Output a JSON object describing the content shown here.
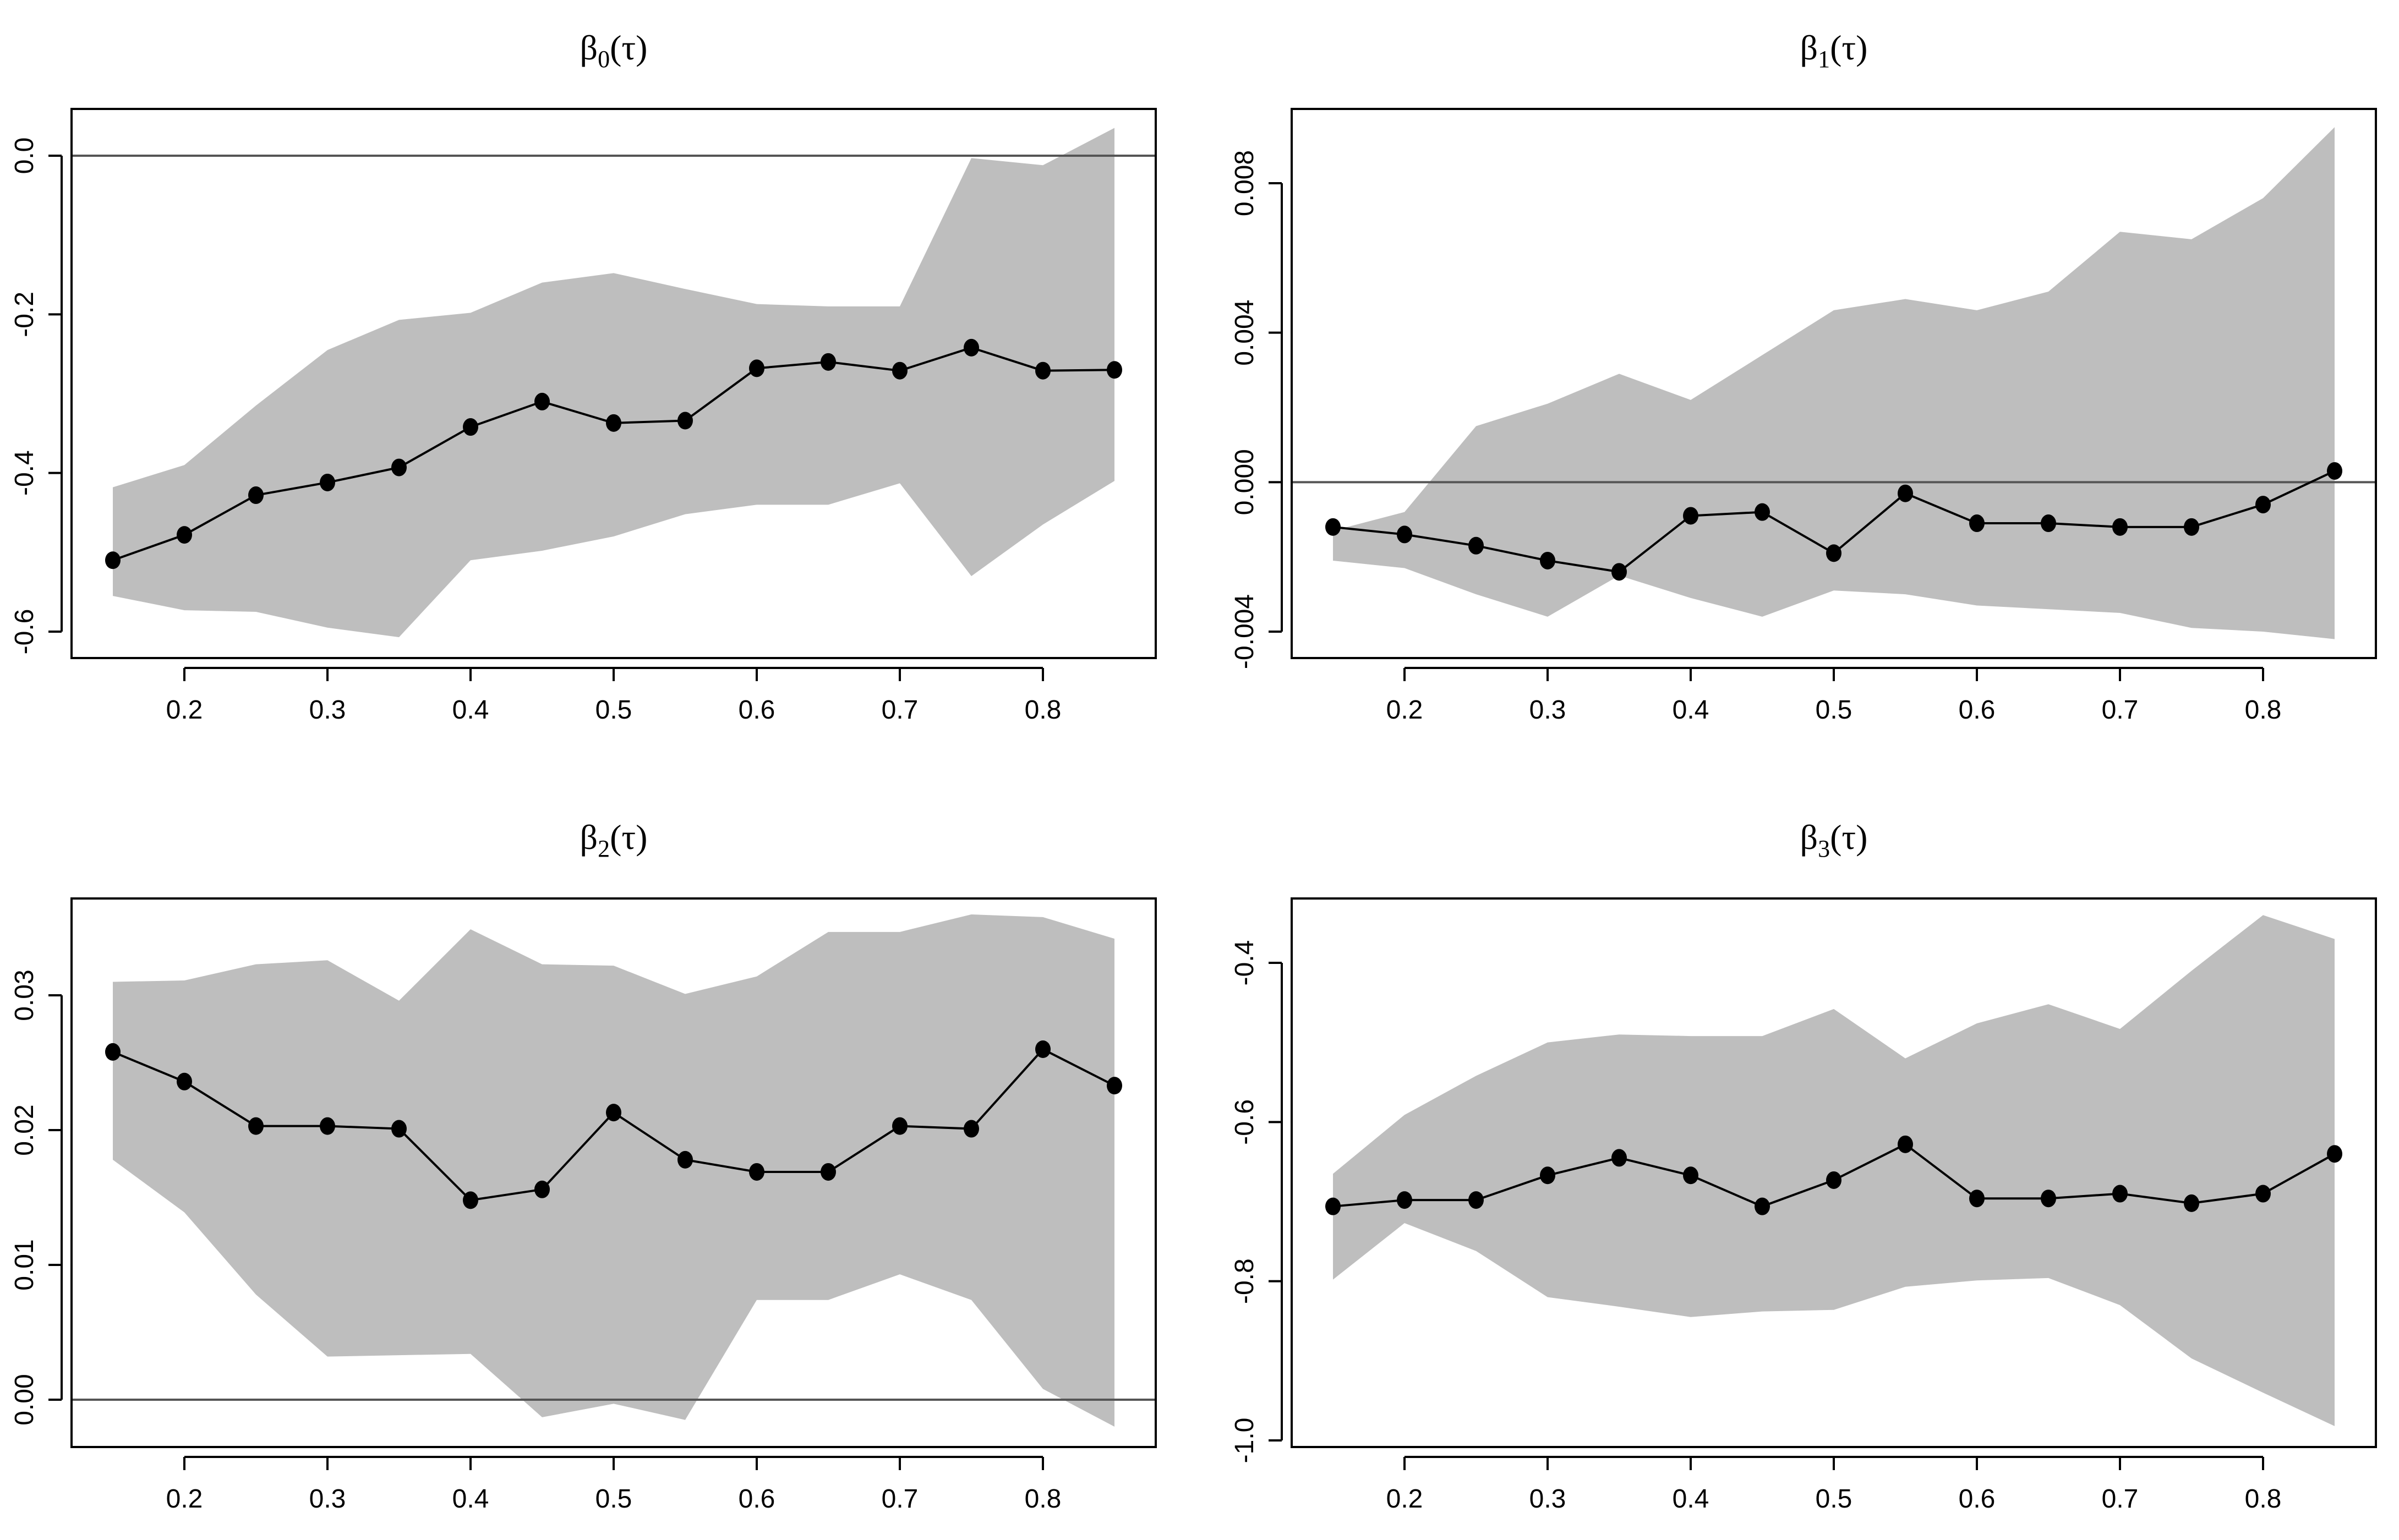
{
  "chart_data": [
    {
      "type": "line",
      "title_base": "β",
      "title_sub": "0",
      "title_arg": "(τ)",
      "x": [
        0.15,
        0.2,
        0.25,
        0.3,
        0.35,
        0.4,
        0.45,
        0.5,
        0.55,
        0.6,
        0.65,
        0.7,
        0.75,
        0.8,
        0.85
      ],
      "series": [
        {
          "name": "estimate",
          "values": [
            -0.51,
            -0.478,
            -0.428,
            -0.412,
            -0.393,
            -0.342,
            -0.31,
            -0.337,
            -0.334,
            -0.268,
            -0.26,
            -0.271,
            -0.242,
            -0.271,
            -0.27
          ]
        },
        {
          "name": "upper",
          "values": [
            -0.418,
            -0.39,
            -0.315,
            -0.245,
            -0.207,
            -0.198,
            -0.16,
            -0.148,
            -0.168,
            -0.187,
            -0.19,
            -0.19,
            -0.003,
            -0.012,
            0.035
          ]
        },
        {
          "name": "lower",
          "values": [
            -0.555,
            -0.573,
            -0.575,
            -0.595,
            -0.607,
            -0.51,
            -0.498,
            -0.48,
            -0.452,
            -0.44,
            -0.44,
            -0.413,
            -0.53,
            -0.465,
            -0.41
          ]
        }
      ],
      "reference_line": 0,
      "xlim": [
        0.15,
        0.85
      ],
      "ylim": [
        -0.6,
        0.0
      ],
      "xticks": [
        "0.2",
        "0.3",
        "0.4",
        "0.5",
        "0.6",
        "0.7",
        "0.8"
      ],
      "yticks": [
        "-0.6",
        "-0.4",
        "-0.2",
        "0.0"
      ]
    },
    {
      "type": "line",
      "title_base": "β",
      "title_sub": "1",
      "title_arg": "(τ)",
      "x": [
        0.15,
        0.2,
        0.25,
        0.3,
        0.35,
        0.4,
        0.45,
        0.5,
        0.55,
        0.6,
        0.65,
        0.7,
        0.75,
        0.8,
        0.85
      ],
      "series": [
        {
          "name": "estimate",
          "values": [
            -0.0012,
            -0.0014,
            -0.0017,
            -0.0021,
            -0.0024,
            -0.0009,
            -0.0008,
            -0.0019,
            -0.0003,
            -0.0011,
            -0.0011,
            -0.0012,
            -0.0012,
            -0.0006,
            0.0003
          ]
        },
        {
          "name": "upper",
          "values": [
            -0.0013,
            -0.0008,
            0.0015,
            0.0021,
            0.0029,
            0.0022,
            0.0034,
            0.0046,
            0.0049,
            0.0046,
            0.0051,
            0.0067,
            0.0065,
            0.0076,
            0.0095
          ]
        },
        {
          "name": "lower",
          "values": [
            -0.0021,
            -0.0023,
            -0.003,
            -0.0036,
            -0.0025,
            -0.0031,
            -0.0036,
            -0.0029,
            -0.003,
            -0.0033,
            -0.0034,
            -0.0035,
            -0.0039,
            -0.004,
            -0.0042
          ]
        }
      ],
      "reference_line": 0,
      "xlim": [
        0.15,
        0.85
      ],
      "ylim": [
        -0.004,
        0.008
      ],
      "xticks": [
        "0.2",
        "0.3",
        "0.4",
        "0.5",
        "0.6",
        "0.7",
        "0.8"
      ],
      "yticks": [
        "-0.004",
        "0.000",
        "0.004",
        "0.008"
      ]
    },
    {
      "type": "line",
      "title_base": "β",
      "title_sub": "2",
      "title_arg": "(τ)",
      "x": [
        0.15,
        0.2,
        0.25,
        0.3,
        0.35,
        0.4,
        0.45,
        0.5,
        0.55,
        0.6,
        0.65,
        0.7,
        0.75,
        0.8,
        0.85
      ],
      "series": [
        {
          "name": "estimate",
          "values": [
            0.0258,
            0.0236,
            0.0203,
            0.0203,
            0.0201,
            0.0148,
            0.0156,
            0.0213,
            0.0178,
            0.0169,
            0.0169,
            0.0203,
            0.0201,
            0.026,
            0.0233
          ]
        },
        {
          "name": "upper",
          "values": [
            0.031,
            0.0311,
            0.0323,
            0.0326,
            0.0296,
            0.0349,
            0.0323,
            0.0322,
            0.0301,
            0.0314,
            0.0347,
            0.0347,
            0.036,
            0.0358,
            0.0342
          ]
        },
        {
          "name": "lower",
          "values": [
            0.0178,
            0.0139,
            0.0078,
            0.0032,
            0.0033,
            0.0034,
            -0.0013,
            -0.0003,
            -0.0015,
            0.0074,
            0.0074,
            0.0093,
            0.0074,
            0.0008,
            -0.002
          ]
        }
      ],
      "reference_line": 0,
      "xlim": [
        0.15,
        0.85
      ],
      "ylim": [
        0.0,
        0.03
      ],
      "xticks": [
        "0.2",
        "0.3",
        "0.4",
        "0.5",
        "0.6",
        "0.7",
        "0.8"
      ],
      "yticks": [
        "0.00",
        "0.01",
        "0.02",
        "0.03"
      ]
    },
    {
      "type": "line",
      "title_base": "β",
      "title_sub": "3",
      "title_arg": "(τ)",
      "x": [
        0.15,
        0.2,
        0.25,
        0.3,
        0.35,
        0.4,
        0.45,
        0.5,
        0.55,
        0.6,
        0.65,
        0.7,
        0.75,
        0.8,
        0.85
      ],
      "series": [
        {
          "name": "estimate",
          "values": [
            -0.706,
            -0.698,
            -0.698,
            -0.667,
            -0.645,
            -0.667,
            -0.706,
            -0.673,
            -0.628,
            -0.696,
            -0.696,
            -0.69,
            -0.702,
            -0.69,
            -0.64
          ]
        },
        {
          "name": "upper",
          "values": [
            -0.665,
            -0.591,
            -0.542,
            -0.5,
            -0.49,
            -0.492,
            -0.492,
            -0.458,
            -0.52,
            -0.476,
            -0.452,
            -0.483,
            -0.41,
            -0.34,
            -0.37
          ]
        },
        {
          "name": "lower",
          "values": [
            -0.798,
            -0.727,
            -0.762,
            -0.82,
            -0.832,
            -0.845,
            -0.838,
            -0.836,
            -0.807,
            -0.799,
            -0.796,
            -0.83,
            -0.897,
            -0.94,
            -0.982
          ]
        }
      ],
      "reference_line": null,
      "xlim": [
        0.15,
        0.85
      ],
      "ylim": [
        -1.0,
        -0.4
      ],
      "xticks": [
        "0.2",
        "0.3",
        "0.4",
        "0.5",
        "0.6",
        "0.7",
        "0.8"
      ],
      "yticks": [
        "-1.0",
        "-0.8",
        "-0.6",
        "-0.4"
      ]
    }
  ]
}
